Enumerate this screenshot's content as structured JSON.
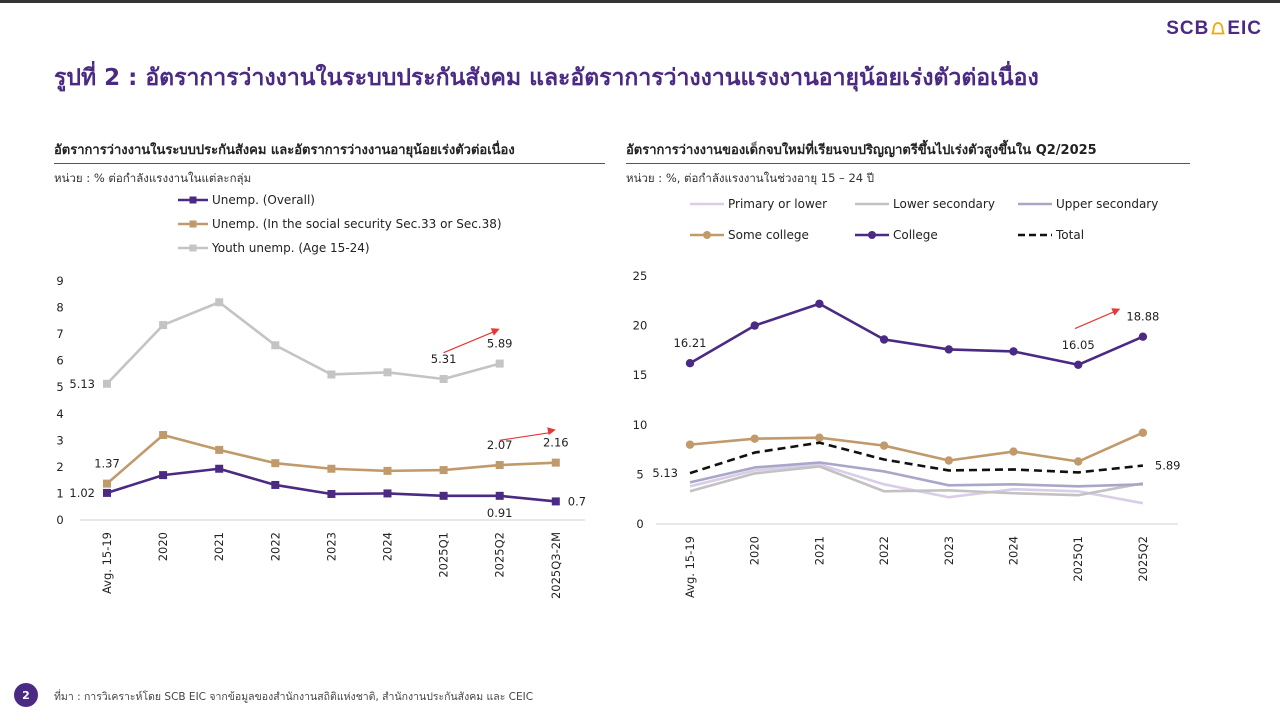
{
  "header": {
    "page_title": "รูปที่ 2 : อัตราการว่างงานในระบบประกันสังคม และอัตราการว่างงานแรงงานอายุน้อยเร่งตัวต่อเนื่อง",
    "logo_left": "SCB",
    "logo_right": "EIC"
  },
  "footer": {
    "page_number": "2",
    "source": "ที่มา : การวิเคราะห์โดย SCB EIC จากข้อมูลของสำนักงานสถิติแห่งชาติ, สำนักงานประกันสังคม และ CEIC"
  },
  "chart_data": [
    {
      "type": "line",
      "title": "อัตราการว่างงานในระบบประกันสังคม และอัตราการว่างงานอายุน้อยเร่งตัวต่อเนื่อง",
      "unit": "หน่วย : % ต่อกำลังแรงงานในแต่ละกลุ่ม",
      "categories": [
        "Avg. 15-19",
        "2020",
        "2021",
        "2022",
        "2023",
        "2024",
        "2025Q1",
        "2025Q2",
        "2025Q3-2M"
      ],
      "ylim": [
        0,
        9
      ],
      "yticks": [
        "0",
        "1",
        "2",
        "3",
        "4",
        "5",
        "6",
        "7",
        "8",
        "9"
      ],
      "legend_position": "top",
      "grid": false,
      "series": [
        {
          "name": "Unemp. (Overall)",
          "color": "#4b2a83",
          "dash": "",
          "values": [
            1.02,
            1.69,
            1.93,
            1.32,
            0.98,
            1.0,
            0.91,
            0.91,
            0.7
          ]
        },
        {
          "name": "Unemp. (In the social security Sec.33 or Sec.38)",
          "color": "#c19a6b",
          "dash": "",
          "values": [
            1.37,
            3.2,
            2.64,
            2.14,
            1.93,
            1.85,
            1.88,
            2.07,
            2.16
          ]
        },
        {
          "name": "Youth unemp. (Age 15-24)",
          "color": "#c4c4c4",
          "dash": "",
          "values": [
            5.13,
            7.34,
            8.2,
            6.58,
            5.48,
            5.56,
            5.31,
            5.89,
            null
          ]
        }
      ],
      "data_labels": [
        {
          "series": 2,
          "index": 0,
          "text": "5.13",
          "pos": "left"
        },
        {
          "series": 2,
          "index": 6,
          "text": "5.31",
          "pos": "above"
        },
        {
          "series": 2,
          "index": 7,
          "text": "5.89",
          "pos": "above"
        },
        {
          "series": 1,
          "index": 0,
          "text": "1.37",
          "pos": "above"
        },
        {
          "series": 1,
          "index": 7,
          "text": "2.07",
          "pos": "above"
        },
        {
          "series": 1,
          "index": 8,
          "text": "2.16",
          "pos": "above"
        },
        {
          "series": 0,
          "index": 0,
          "text": "1.02",
          "pos": "left"
        },
        {
          "series": 0,
          "index": 7,
          "text": "0.91",
          "pos": "below"
        },
        {
          "series": 0,
          "index": 8,
          "text": "0.7",
          "pos": "right"
        }
      ],
      "arrows": [
        {
          "from": [
            6.0,
            6.3
          ],
          "to": [
            7.0,
            7.2
          ],
          "color": "#e53935"
        },
        {
          "from": [
            7.0,
            3.0
          ],
          "to": [
            8.0,
            3.4
          ],
          "color": "#e53935"
        }
      ]
    },
    {
      "type": "line",
      "title": "อัตราการว่างงานของเด็กจบใหม่ที่เรียนจบปริญญาตรีขึ้นไปเร่งตัวสูงขึ้นใน Q2/2025",
      "unit": "หน่วย : %, ต่อกำลังแรงงานในช่วงอายุ 15 – 24 ปี",
      "categories": [
        "Avg. 15-19",
        "2020",
        "2021",
        "2022",
        "2023",
        "2024",
        "2025Q1",
        "2025Q2"
      ],
      "ylim": [
        0,
        25
      ],
      "yticks": [
        "0",
        "5",
        "10",
        "15",
        "20",
        "25"
      ],
      "legend_position": "top",
      "grid": false,
      "series": [
        {
          "name": "Primary or lower",
          "color": "#d9cde8",
          "dash": "",
          "marker": false,
          "values": [
            3.8,
            5.4,
            6.0,
            4.0,
            2.7,
            3.5,
            3.3,
            2.1
          ]
        },
        {
          "name": "Lower secondary",
          "color": "#c2c2c2",
          "dash": "",
          "marker": false,
          "values": [
            3.3,
            5.1,
            5.8,
            3.3,
            3.4,
            3.1,
            2.9,
            4.1
          ]
        },
        {
          "name": "Upper secondary",
          "color": "#a9a7c9",
          "dash": "",
          "marker": false,
          "values": [
            4.2,
            5.7,
            6.2,
            5.3,
            3.9,
            4.0,
            3.8,
            4.0
          ]
        },
        {
          "name": "Some college",
          "color": "#c19a6b",
          "dash": "",
          "marker": true,
          "values": [
            8.0,
            8.6,
            8.7,
            7.9,
            6.4,
            7.3,
            6.3,
            9.2
          ]
        },
        {
          "name": "College",
          "color": "#4b2a83",
          "dash": "",
          "marker": true,
          "values": [
            16.21,
            20.0,
            22.2,
            18.6,
            17.6,
            17.4,
            16.05,
            18.88
          ]
        },
        {
          "name": "Total",
          "color": "#111111",
          "dash": "8,5",
          "marker": false,
          "values": [
            5.13,
            7.2,
            8.2,
            6.5,
            5.4,
            5.5,
            5.2,
            5.89
          ]
        }
      ],
      "data_labels": [
        {
          "series": 4,
          "index": 0,
          "text": "16.21",
          "pos": "above"
        },
        {
          "series": 4,
          "index": 6,
          "text": "16.05",
          "pos": "above"
        },
        {
          "series": 4,
          "index": 7,
          "text": "18.88",
          "pos": "above"
        },
        {
          "series": 5,
          "index": 0,
          "text": "5.13",
          "pos": "left"
        },
        {
          "series": 5,
          "index": 7,
          "text": "5.89",
          "pos": "right"
        }
      ],
      "arrows": [
        {
          "from": [
            5.95,
            19.7
          ],
          "to": [
            6.65,
            21.7
          ],
          "color": "#e53935"
        }
      ]
    }
  ]
}
